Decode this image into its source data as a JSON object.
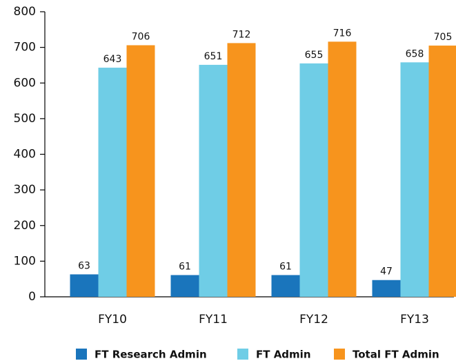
{
  "chart_data": {
    "type": "bar",
    "categories": [
      "FY10",
      "FY11",
      "FY12",
      "FY13"
    ],
    "series": [
      {
        "name": "FT Research Admin",
        "color": "#1a75bc",
        "values": [
          63,
          61,
          61,
          47
        ]
      },
      {
        "name": "FT Admin",
        "color": "#6fcde6",
        "values": [
          643,
          651,
          655,
          658
        ]
      },
      {
        "name": "Total FT Admin",
        "color": "#f7941d",
        "values": [
          706,
          712,
          716,
          705
        ]
      }
    ],
    "ylim": [
      0,
      800
    ],
    "yticks": [
      0,
      100,
      200,
      300,
      400,
      500,
      600,
      700,
      800
    ],
    "grid": false,
    "legend": "bottom"
  }
}
